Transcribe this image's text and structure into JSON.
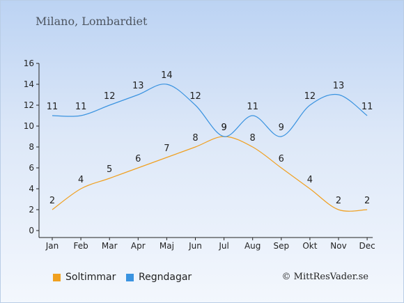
{
  "header": {
    "title": "Milano, Lombardiet"
  },
  "footer": {
    "credit": "© MittResVader.se"
  },
  "chart_data": {
    "type": "line",
    "categories": [
      "Jan",
      "Feb",
      "Mar",
      "Apr",
      "Maj",
      "Jun",
      "Jul",
      "Aug",
      "Sep",
      "Okt",
      "Nov",
      "Dec"
    ],
    "series": [
      {
        "name": "Soltimmar",
        "color": "#f0a020",
        "values": [
          2,
          4,
          5,
          6,
          7,
          8,
          9,
          8,
          6,
          4,
          2,
          2
        ]
      },
      {
        "name": "Regndagar",
        "color": "#3a93e0",
        "values": [
          11,
          11,
          12,
          13,
          14,
          12,
          9,
          11,
          9,
          12,
          13,
          11
        ]
      }
    ],
    "ylim": [
      0,
      16
    ],
    "yticks": [
      0,
      2,
      4,
      6,
      8,
      10,
      12,
      14,
      16
    ],
    "grid": false,
    "legend_position": "bottom-left"
  }
}
